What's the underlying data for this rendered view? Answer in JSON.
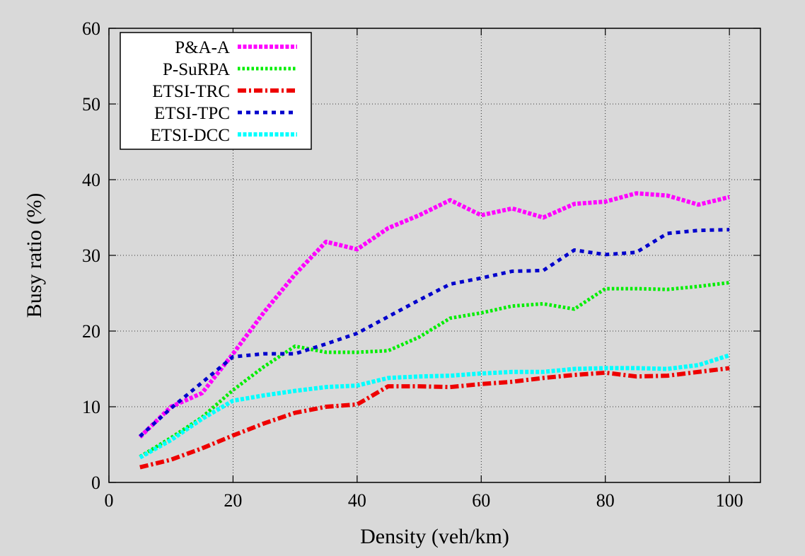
{
  "chart_data": {
    "type": "line",
    "title": "",
    "xlabel": "Density (veh/km)",
    "ylabel": "Busy ratio (%)",
    "xlim": [
      0,
      105
    ],
    "ylim": [
      0,
      60
    ],
    "xticks": [
      0,
      20,
      40,
      60,
      80,
      100
    ],
    "yticks": [
      0,
      10,
      20,
      30,
      40,
      50,
      60
    ],
    "grid": true,
    "legend_position": "top-left",
    "x": [
      5,
      10,
      15,
      20,
      25,
      30,
      35,
      40,
      45,
      50,
      55,
      60,
      65,
      70,
      75,
      80,
      85,
      90,
      95,
      100
    ],
    "series": [
      {
        "name": "P&A-A",
        "color": "#ff00ff",
        "dash": "dotted-dense",
        "values": [
          6.0,
          10.0,
          11.8,
          17.0,
          22.5,
          27.5,
          31.8,
          30.8,
          33.6,
          35.3,
          37.3,
          35.3,
          36.2,
          35.0,
          36.8,
          37.1,
          38.2,
          37.9,
          36.7,
          37.7
        ]
      },
      {
        "name": "P-SuRPA",
        "color": "#00ee00",
        "dash": "dotted",
        "values": [
          3.4,
          5.9,
          8.6,
          12.2,
          15.3,
          18.0,
          17.2,
          17.2,
          17.4,
          19.2,
          21.7,
          22.4,
          23.3,
          23.6,
          22.9,
          25.6,
          25.6,
          25.5,
          25.9,
          26.4
        ]
      },
      {
        "name": "ETSI-TRC",
        "color": "#ee0000",
        "dash": "dash-dot",
        "values": [
          2.0,
          3.0,
          4.5,
          6.2,
          7.8,
          9.2,
          10.0,
          10.3,
          12.7,
          12.7,
          12.6,
          13.0,
          13.3,
          13.8,
          14.2,
          14.5,
          14.0,
          14.1,
          14.6,
          15.1
        ]
      },
      {
        "name": "ETSI-TPC",
        "color": "#0000cc",
        "dash": "dashed",
        "values": [
          6.1,
          9.8,
          13.2,
          16.6,
          17.0,
          17.0,
          18.3,
          19.7,
          21.9,
          24.1,
          26.2,
          27.0,
          27.9,
          28.0,
          30.7,
          30.1,
          30.4,
          32.9,
          33.3,
          33.4
        ]
      },
      {
        "name": "ETSI-DCC",
        "color": "#00ffff",
        "dash": "dotted-dense",
        "values": [
          3.3,
          5.6,
          8.4,
          10.8,
          11.5,
          12.1,
          12.6,
          12.8,
          13.8,
          14.0,
          14.1,
          14.4,
          14.6,
          14.6,
          15.0,
          15.1,
          15.1,
          15.0,
          15.5,
          16.8
        ]
      }
    ]
  }
}
